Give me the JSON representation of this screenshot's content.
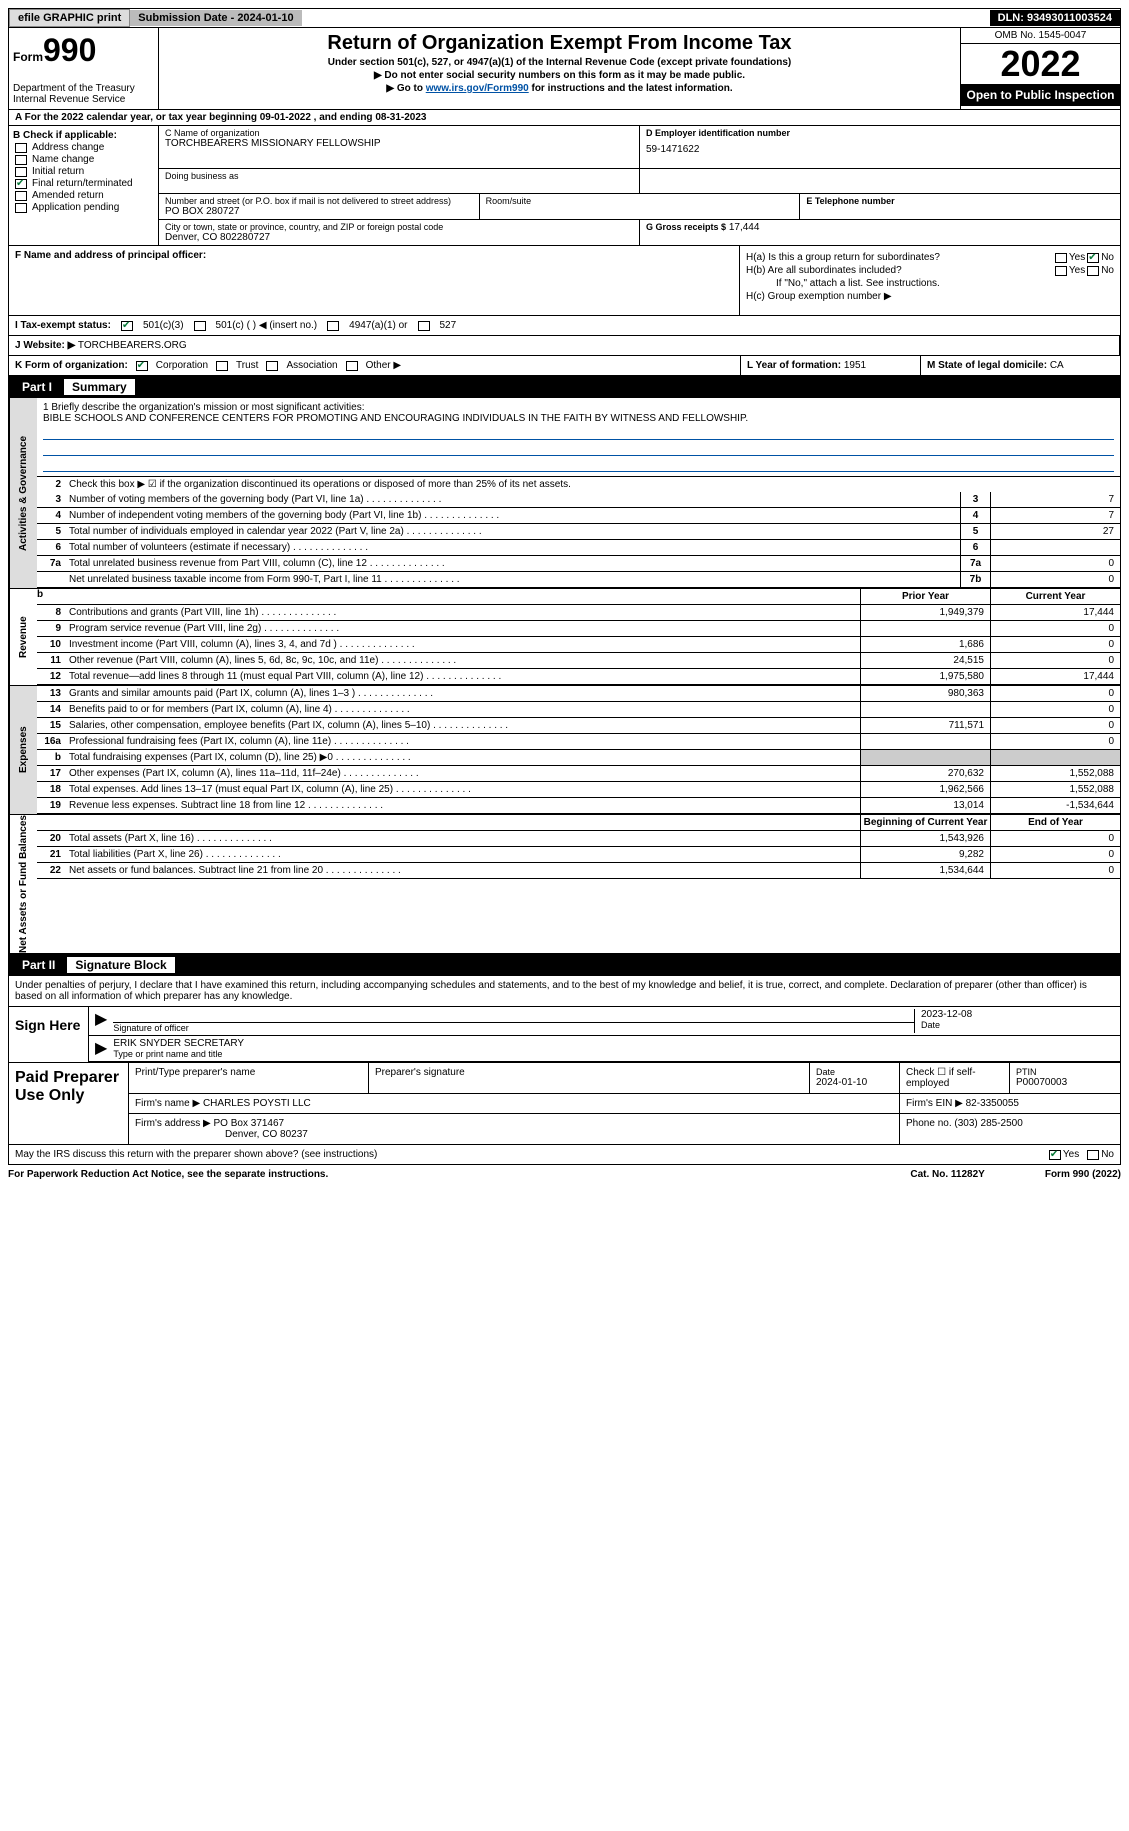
{
  "topbar": {
    "efile": "efile GRAPHIC print",
    "submission": "Submission Date - 2024-01-10",
    "dln": "DLN: 93493011003524"
  },
  "header": {
    "form_prefix": "Form",
    "form_num": "990",
    "dept": "Department of the Treasury",
    "irs": "Internal Revenue Service",
    "title": "Return of Organization Exempt From Income Tax",
    "sub1": "Under section 501(c), 527, or 4947(a)(1) of the Internal Revenue Code (except private foundations)",
    "sub2": "▶ Do not enter social security numbers on this form as it may be made public.",
    "sub3_pre": "▶ Go to ",
    "sub3_link": "www.irs.gov/Form990",
    "sub3_post": " for instructions and the latest information.",
    "omb": "OMB No. 1545-0047",
    "year": "2022",
    "otp": "Open to Public Inspection"
  },
  "row_a": "A   For the 2022 calendar year, or tax year beginning 09-01-2022    , and ending 08-31-2023",
  "col_b": {
    "title": "B Check if applicable:",
    "items": [
      {
        "label": "Address change",
        "checked": false
      },
      {
        "label": "Name change",
        "checked": false
      },
      {
        "label": "Initial return",
        "checked": false
      },
      {
        "label": "Final return/terminated",
        "checked": true
      },
      {
        "label": "Amended return",
        "checked": false
      },
      {
        "label": "Application pending",
        "checked": false
      }
    ]
  },
  "block_c": {
    "name_lbl": "C Name of organization",
    "name_val": "TORCHBEARERS MISSIONARY FELLOWSHIP",
    "dba_lbl": "Doing business as",
    "addr_lbl": "Number and street (or P.O. box if mail is not delivered to street address)",
    "addr_val": "PO BOX 280727",
    "room_lbl": "Room/suite",
    "city_lbl": "City or town, state or province, country, and ZIP or foreign postal code",
    "city_val": "Denver, CO  802280727"
  },
  "block_d": {
    "lbl": "D Employer identification number",
    "val": "59-1471622"
  },
  "block_e": {
    "lbl": "E Telephone number",
    "val": ""
  },
  "block_g": {
    "lbl": "G Gross receipts $",
    "val": "17,444"
  },
  "block_f": {
    "lbl": "F Name and address of principal officer:"
  },
  "block_h": {
    "ha": "H(a)  Is this a group return for subordinates?",
    "hb": "H(b)  Are all subordinates included?",
    "hb_note": "If \"No,\" attach a list. See instructions.",
    "hc": "H(c)  Group exemption number ▶"
  },
  "row_i": {
    "lbl": "I   Tax-exempt status:",
    "opts": [
      "501(c)(3)",
      "501(c) (   ) ◀ (insert no.)",
      "4947(a)(1) or",
      "527"
    ]
  },
  "row_j": {
    "lbl": "J   Website: ▶",
    "val": "  TORCHBEARERS.ORG"
  },
  "row_k": {
    "lbl": "K Form of organization:",
    "opts": [
      "Corporation",
      "Trust",
      "Association",
      "Other ▶"
    ],
    "l_lbl": "L Year of formation:",
    "l_val": "1951",
    "m_lbl": "M State of legal domicile:",
    "m_val": "CA"
  },
  "part1": {
    "num": "Part I",
    "title": "Summary"
  },
  "briefly": {
    "lbl": "1   Briefly describe the organization's mission or most significant activities:",
    "text": "BIBLE SCHOOLS AND CONFERENCE CENTERS FOR PROMOTING AND ENCOURAGING INDIVIDUALS IN THE FAITH BY WITNESS AND FELLOWSHIP."
  },
  "line2": "Check this box ▶ ☑ if the organization discontinued its operations or disposed of more than 25% of its net assets.",
  "gov_lines": [
    {
      "num": "3",
      "desc": "Number of voting members of the governing body (Part VI, line 1a)",
      "box": "3",
      "val": "7"
    },
    {
      "num": "4",
      "desc": "Number of independent voting members of the governing body (Part VI, line 1b)",
      "box": "4",
      "val": "7"
    },
    {
      "num": "5",
      "desc": "Total number of individuals employed in calendar year 2022 (Part V, line 2a)",
      "box": "5",
      "val": "27"
    },
    {
      "num": "6",
      "desc": "Total number of volunteers (estimate if necessary)",
      "box": "6",
      "val": ""
    },
    {
      "num": "7a",
      "desc": "Total unrelated business revenue from Part VIII, column (C), line 12",
      "box": "7a",
      "val": "0"
    },
    {
      "num": "",
      "desc": "Net unrelated business taxable income from Form 990-T, Part I, line 11",
      "box": "7b",
      "val": "0"
    }
  ],
  "col_headers": {
    "prior": "Prior Year",
    "current": "Current Year"
  },
  "col_headers2": {
    "prior": "Beginning of Current Year",
    "current": "End of Year"
  },
  "vtabs": {
    "gov": "Activities & Governance",
    "rev": "Revenue",
    "exp": "Expenses",
    "net": "Net Assets or Fund Balances"
  },
  "rev_lines": [
    {
      "num": "8",
      "desc": "Contributions and grants (Part VIII, line 1h)",
      "prior": "1,949,379",
      "curr": "17,444"
    },
    {
      "num": "9",
      "desc": "Program service revenue (Part VIII, line 2g)",
      "prior": "",
      "curr": "0"
    },
    {
      "num": "10",
      "desc": "Investment income (Part VIII, column (A), lines 3, 4, and 7d )",
      "prior": "1,686",
      "curr": "0"
    },
    {
      "num": "11",
      "desc": "Other revenue (Part VIII, column (A), lines 5, 6d, 8c, 9c, 10c, and 11e)",
      "prior": "24,515",
      "curr": "0"
    },
    {
      "num": "12",
      "desc": "Total revenue—add lines 8 through 11 (must equal Part VIII, column (A), line 12)",
      "prior": "1,975,580",
      "curr": "17,444"
    }
  ],
  "exp_lines": [
    {
      "num": "13",
      "desc": "Grants and similar amounts paid (Part IX, column (A), lines 1–3 )",
      "prior": "980,363",
      "curr": "0"
    },
    {
      "num": "14",
      "desc": "Benefits paid to or for members (Part IX, column (A), line 4)",
      "prior": "",
      "curr": "0"
    },
    {
      "num": "15",
      "desc": "Salaries, other compensation, employee benefits (Part IX, column (A), lines 5–10)",
      "prior": "711,571",
      "curr": "0"
    },
    {
      "num": "16a",
      "desc": "Professional fundraising fees (Part IX, column (A), line 11e)",
      "prior": "",
      "curr": "0"
    },
    {
      "num": "b",
      "desc": "Total fundraising expenses (Part IX, column (D), line 25) ▶0",
      "prior": "SHADE",
      "curr": "SHADE"
    },
    {
      "num": "17",
      "desc": "Other expenses (Part IX, column (A), lines 11a–11d, 11f–24e)",
      "prior": "270,632",
      "curr": "1,552,088"
    },
    {
      "num": "18",
      "desc": "Total expenses. Add lines 13–17 (must equal Part IX, column (A), line 25)",
      "prior": "1,962,566",
      "curr": "1,552,088"
    },
    {
      "num": "19",
      "desc": "Revenue less expenses. Subtract line 18 from line 12",
      "prior": "13,014",
      "curr": "-1,534,644"
    }
  ],
  "net_lines": [
    {
      "num": "20",
      "desc": "Total assets (Part X, line 16)",
      "prior": "1,543,926",
      "curr": "0"
    },
    {
      "num": "21",
      "desc": "Total liabilities (Part X, line 26)",
      "prior": "9,282",
      "curr": "0"
    },
    {
      "num": "22",
      "desc": "Net assets or fund balances. Subtract line 21 from line 20",
      "prior": "1,534,644",
      "curr": "0"
    }
  ],
  "part2": {
    "num": "Part II",
    "title": "Signature Block"
  },
  "sig": {
    "decl": "Under penalties of perjury, I declare that I have examined this return, including accompanying schedules and statements, and to the best of my knowledge and belief, it is true, correct, and complete. Declaration of preparer (other than officer) is based on all information of which preparer has any knowledge.",
    "sign_here": "Sign Here",
    "sig_officer": "Signature of officer",
    "date_lbl": "Date",
    "date_val": "2023-12-08",
    "name_val": "ERIK SNYDER  SECRETARY",
    "name_lbl": "Type or print name and title"
  },
  "paid": {
    "lbl": "Paid Preparer Use Only",
    "print_lbl": "Print/Type preparer's name",
    "prep_sig_lbl": "Preparer's signature",
    "date_lbl": "Date",
    "date_val": "2024-01-10",
    "check_lbl": "Check ☐ if self-employed",
    "ptin_lbl": "PTIN",
    "ptin_val": "P00070003",
    "firm_name_lbl": "Firm's name    ▶",
    "firm_name_val": "CHARLES POYSTI LLC",
    "firm_ein_lbl": "Firm's EIN ▶",
    "firm_ein_val": "82-3350055",
    "firm_addr_lbl": "Firm's address ▶",
    "firm_addr_val": "PO Box 371467",
    "firm_city_val": "Denver, CO  80237",
    "phone_lbl": "Phone no.",
    "phone_val": "(303) 285-2500"
  },
  "may": "May the IRS discuss this return with the preparer shown above? (see instructions)",
  "footer": {
    "left": "For Paperwork Reduction Act Notice, see the separate instructions.",
    "mid": "Cat. No. 11282Y",
    "right": "Form 990 (2022)"
  },
  "labels": {
    "yes": "Yes",
    "no": "No"
  }
}
